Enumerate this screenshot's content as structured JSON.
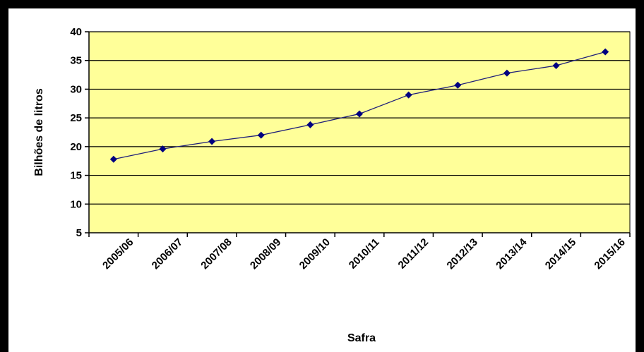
{
  "chart_data": {
    "type": "line",
    "title": "",
    "xlabel": "Safra",
    "ylabel": "Bilhões de litros",
    "categories": [
      "2005/06",
      "2006/07",
      "2007/08",
      "2008/09",
      "2009/10",
      "2010/11",
      "2011/12",
      "2012/13",
      "2013/14",
      "2014/15",
      "2015/16"
    ],
    "series": [
      {
        "values": [
          17.8,
          19.6,
          20.9,
          22.0,
          23.8,
          25.7,
          29.0,
          30.7,
          32.8,
          34.1,
          36.5
        ]
      }
    ],
    "ylim": [
      5,
      40
    ],
    "yticks": [
      5,
      10,
      15,
      20,
      25,
      30,
      35,
      40
    ],
    "grid": true,
    "legend": "none",
    "colors": {
      "plot_background": "#ffff99",
      "line": "#1f1f7a",
      "marker": "#000080",
      "gridline": "#000000",
      "frame": "#000000"
    }
  }
}
